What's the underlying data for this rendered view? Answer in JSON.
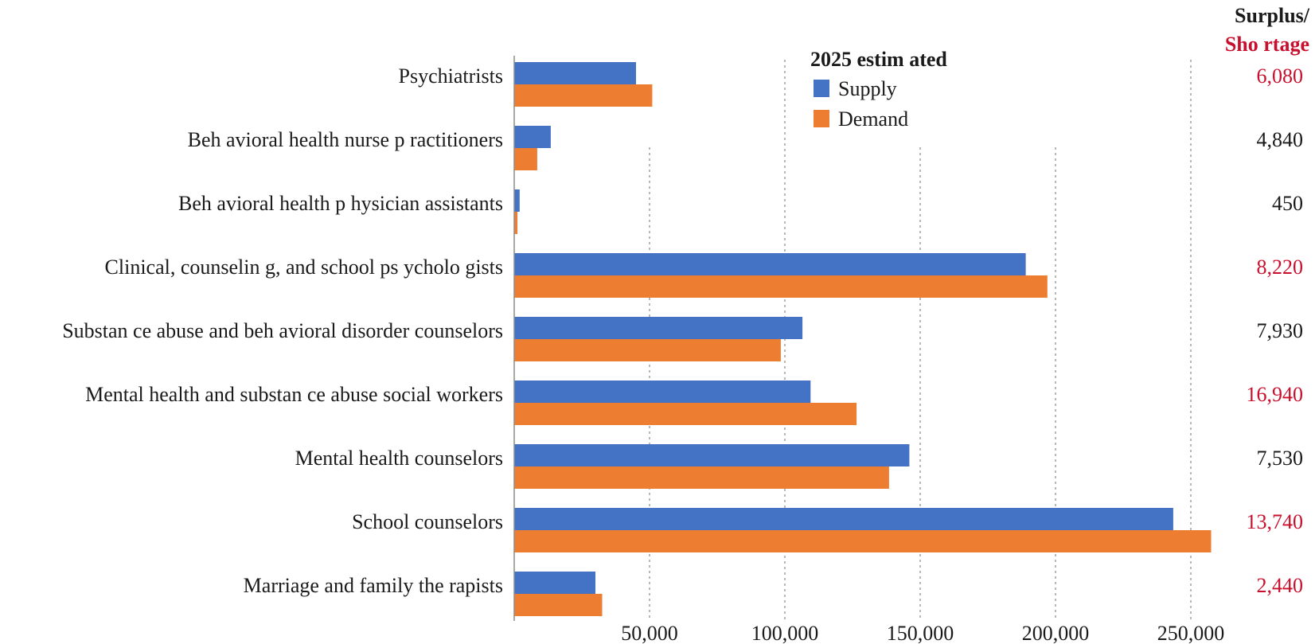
{
  "chart_data": {
    "type": "bar",
    "orientation": "horizontal",
    "categories": [
      "Psychiatrists",
      "Beh avioral health nurse p ractitioners",
      "Beh avioral health p hysician assistants",
      "Clinical, counselin g, and school ps ycholo gists",
      "Substan ce abuse and  beh avioral disorder counselors",
      "Mental health and  substan ce abuse social  workers",
      "Mental health  counselors",
      "School counselors",
      "Marriage and family the rapists"
    ],
    "series": [
      {
        "name": "Supply",
        "color": "#4472C4",
        "values": [
          45000,
          13500,
          2000,
          189000,
          106500,
          109500,
          146000,
          243500,
          30000
        ]
      },
      {
        "name": "Demand",
        "color": "#ED7D31",
        "values": [
          51000,
          8500,
          1200,
          197000,
          98500,
          126500,
          138500,
          257500,
          32500
        ]
      }
    ],
    "xlim": [
      0,
      260000
    ],
    "xticks": [
      {
        "value": 50000,
        "label": "50,000"
      },
      {
        "value": 100000,
        "label": "100,000"
      },
      {
        "value": 150000,
        "label": "150,000"
      },
      {
        "value": 200000,
        "label": "200,000"
      },
      {
        "value": 250000,
        "label": "250,000"
      }
    ],
    "grid": "vertical dotted",
    "legend": {
      "title": "2025 estim ated",
      "position": "top-center",
      "items": [
        "Supply",
        "Demand"
      ]
    },
    "surplus_shortage": {
      "header_line1": "Surplus/",
      "header_line2": "Sho rtage",
      "header_color1": "#1a1a1a",
      "header_color2": "#C8102E",
      "values": [
        {
          "label": "6,080",
          "type": "shortage"
        },
        {
          "label": "4,840",
          "type": "surplus"
        },
        {
          "label": "450",
          "type": "surplus"
        },
        {
          "label": "8,220",
          "type": "shortage"
        },
        {
          "label": "7,930",
          "type": "surplus"
        },
        {
          "label": "16,940",
          "type": "shortage"
        },
        {
          "label": "7,530",
          "type": "surplus"
        },
        {
          "label": "13,740",
          "type": "shortage"
        },
        {
          "label": "2,440",
          "type": "shortage"
        }
      ],
      "colors": {
        "shortage": "#C8102E",
        "surplus": "#1a1a1a"
      }
    }
  }
}
